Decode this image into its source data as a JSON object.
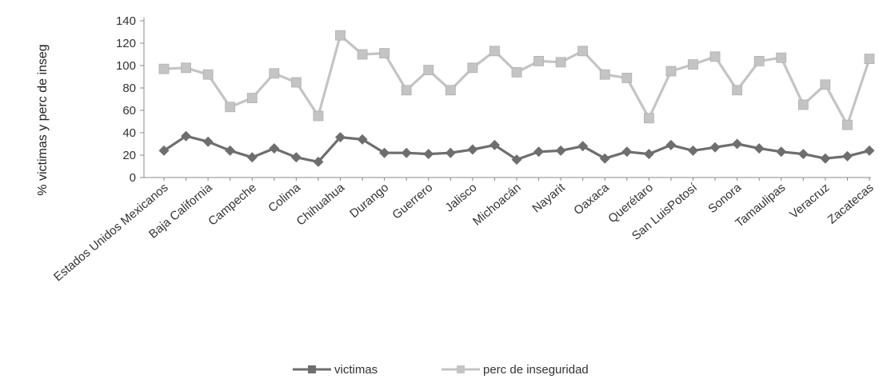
{
  "chart_data": {
    "type": "line",
    "ylabel": "% victimas y perc de inseg",
    "ylim": [
      0,
      140
    ],
    "yticks": [
      0,
      20,
      40,
      60,
      80,
      100,
      120,
      140
    ],
    "grid": false,
    "legend_position": "bottom",
    "categories": [
      "Estados Unidos Mexicanos",
      "",
      "Baja California",
      "",
      "Campeche",
      "",
      "Colima",
      "",
      "Chihuahua",
      "",
      "Durango",
      "",
      "Guerrero",
      "",
      "Jalisco",
      "",
      "Michoacán",
      "",
      "Nayarit",
      "",
      "Oaxaca",
      "",
      "Querétaro",
      "",
      "San LuisPotosí",
      "",
      "Sonora",
      "",
      "Tamaulipas",
      "",
      "Veracruz",
      "",
      "Zacatecas"
    ],
    "series": [
      {
        "name": "victimas",
        "color": "#6e6e6e",
        "values": [
          24,
          37,
          32,
          24,
          18,
          26,
          18,
          14,
          36,
          34,
          22,
          22,
          21,
          22,
          25,
          29,
          16,
          23,
          24,
          28,
          17,
          23,
          21,
          29,
          24,
          27,
          30,
          26,
          23,
          21,
          17,
          19,
          24
        ]
      },
      {
        "name": "perc de inseguridad",
        "color": "#c4c4c4",
        "values": [
          97,
          98,
          92,
          63,
          71,
          93,
          85,
          55,
          127,
          110,
          111,
          78,
          96,
          78,
          98,
          113,
          94,
          104,
          103,
          113,
          92,
          89,
          53,
          95,
          101,
          108,
          78,
          104,
          107,
          65,
          83,
          47,
          106
        ]
      }
    ]
  }
}
